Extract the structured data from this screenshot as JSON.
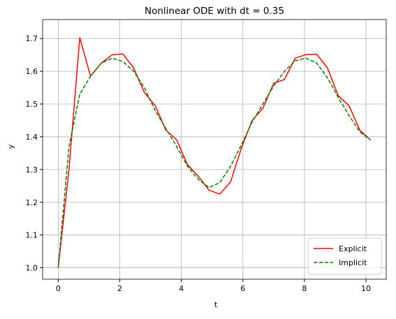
{
  "chart_data": {
    "type": "line",
    "title": "Nonlinear ODE with dt = 0.35",
    "xlabel": "t",
    "ylabel": "y",
    "x": [
      0,
      0.35,
      0.7,
      1.05,
      1.4,
      1.75,
      2.1,
      2.45,
      2.8,
      3.15,
      3.5,
      3.85,
      4.2,
      4.55,
      4.9,
      5.25,
      5.6,
      5.95,
      6.3,
      6.65,
      7.0,
      7.35,
      7.7,
      8.05,
      8.4,
      8.75,
      9.1,
      9.45,
      9.8,
      10.15
    ],
    "series": [
      {
        "name": "Explicit",
        "color": "#ff0000",
        "dash": "solid",
        "values": [
          1.0,
          1.3,
          1.703,
          1.585,
          1.625,
          1.65,
          1.653,
          1.61,
          1.535,
          1.495,
          1.42,
          1.39,
          1.315,
          1.28,
          1.237,
          1.225,
          1.262,
          1.365,
          1.45,
          1.487,
          1.563,
          1.575,
          1.64,
          1.651,
          1.652,
          1.61,
          1.525,
          1.495,
          1.42,
          1.39
        ]
      },
      {
        "name": "Implicit",
        "color": "#008000",
        "dash": "dashed",
        "values": [
          1.0,
          1.37,
          1.53,
          1.585,
          1.625,
          1.64,
          1.63,
          1.6,
          1.55,
          1.48,
          1.425,
          1.37,
          1.31,
          1.27,
          1.245,
          1.26,
          1.31,
          1.375,
          1.445,
          1.5,
          1.555,
          1.6,
          1.632,
          1.64,
          1.625,
          1.58,
          1.52,
          1.465,
          1.415,
          1.39
        ]
      }
    ],
    "xlim": [
      -0.5075,
      10.6575
    ],
    "ylim": [
      0.965,
      1.758
    ],
    "xticks": [
      0,
      2,
      4,
      6,
      8,
      10
    ],
    "yticks": [
      {
        "value": 1,
        "label": "1.0"
      },
      1.1,
      1.2,
      1.3,
      1.4,
      1.5,
      1.6,
      1.7
    ],
    "grid": true,
    "legend": "lower right"
  }
}
